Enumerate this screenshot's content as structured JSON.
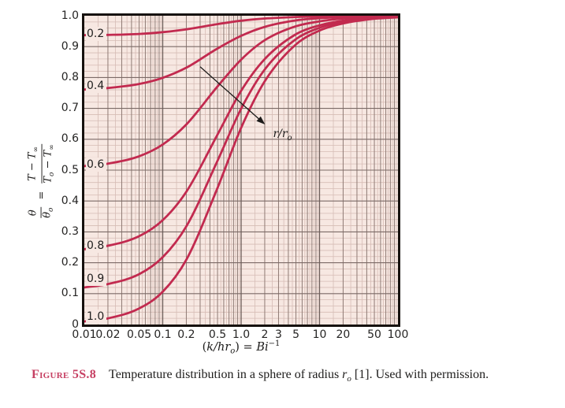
{
  "colors": {
    "plot_bg": "#f7e8e2",
    "frame_color": "#16110e",
    "curve_color": "#c22a4f",
    "grid_major": "#7b6a66",
    "grid_decade": "#6b5c58",
    "grid_mid": "#8f7b75",
    "grid_minor": "#d6bcb5",
    "fig_label_color": "#c63f62",
    "arrow_color": "#1c1b1a"
  },
  "chart_data": {
    "type": "line",
    "x_scale": "log",
    "xlim": [
      0.01,
      100
    ],
    "ylim": [
      0,
      1
    ],
    "grid": "on",
    "x": [
      0.01,
      0.02,
      0.05,
      0.1,
      0.2,
      0.5,
      1,
      2,
      5,
      10,
      20,
      50,
      100
    ],
    "series": [
      {
        "name": "0.2",
        "label_y": 0.942,
        "values": [
          0.937,
          0.938,
          0.941,
          0.947,
          0.956,
          0.973,
          0.984,
          0.991,
          0.996,
          0.998,
          0.999,
          1.0,
          1.0
        ]
      },
      {
        "name": "0.4",
        "label_y": 0.772,
        "values": [
          0.761,
          0.766,
          0.779,
          0.799,
          0.832,
          0.894,
          0.935,
          0.964,
          0.985,
          0.992,
          0.996,
          0.998,
          0.999
        ]
      },
      {
        "name": "0.6",
        "label_y": 0.517,
        "values": [
          0.513,
          0.521,
          0.545,
          0.583,
          0.648,
          0.771,
          0.858,
          0.921,
          0.966,
          0.982,
          0.991,
          0.996,
          0.998
        ]
      },
      {
        "name": "0.8",
        "label_y": 0.254,
        "values": [
          0.244,
          0.255,
          0.286,
          0.338,
          0.43,
          0.615,
          0.757,
          0.86,
          0.94,
          0.969,
          0.984,
          0.994,
          0.997
        ]
      },
      {
        "name": "0.9",
        "label_y": 0.148,
        "values": [
          0.12,
          0.131,
          0.163,
          0.218,
          0.318,
          0.53,
          0.699,
          0.826,
          0.924,
          0.961,
          0.98,
          0.992,
          0.996
        ]
      },
      {
        "name": "1.0",
        "label_y": 0.026,
        "values": [
          0.01,
          0.02,
          0.052,
          0.106,
          0.21,
          0.442,
          0.637,
          0.788,
          0.907,
          0.952,
          0.975,
          0.99,
          0.995
        ]
      }
    ],
    "x_ticks": [
      {
        "v": 0.01,
        "label": "0.01"
      },
      {
        "v": 0.02,
        "label": "0.02"
      },
      {
        "v": 0.05,
        "label": "0.05"
      },
      {
        "v": 0.1,
        "label": "0.1"
      },
      {
        "v": 0.2,
        "label": "0.2"
      },
      {
        "v": 0.5,
        "label": "0.5"
      },
      {
        "v": 1,
        "label": "1.0"
      },
      {
        "v": 2,
        "label": "2"
      },
      {
        "v": 3,
        "label": "3"
      },
      {
        "v": 5,
        "label": "5"
      },
      {
        "v": 10,
        "label": "10"
      },
      {
        "v": 20,
        "label": "20"
      },
      {
        "v": 50,
        "label": "50"
      },
      {
        "v": 100,
        "label": "100"
      }
    ],
    "y_ticks": [
      {
        "v": 1,
        "label": "1.0"
      },
      {
        "v": 0.9,
        "label": "0.9"
      },
      {
        "v": 0.8,
        "label": "0.8"
      },
      {
        "v": 0.7,
        "label": "0.7"
      },
      {
        "v": 0.6,
        "label": "0.6"
      },
      {
        "v": 0.5,
        "label": "0.5"
      },
      {
        "v": 0.4,
        "label": "0.4"
      },
      {
        "v": 0.3,
        "label": "0.3"
      },
      {
        "v": 0.2,
        "label": "0.2"
      },
      {
        "v": 0.1,
        "label": "0.1"
      },
      {
        "v": 0,
        "label": "0"
      }
    ],
    "xlabel_parts": {
      "open": "(",
      "vars": "k/hr",
      "sub": "o",
      "close": ") = ",
      "bi": "Bi",
      "sup": "−1"
    },
    "ylabel_parts": {
      "lhs_num": "θ",
      "lhs_den": "θ",
      "lhs_den_sub": "o",
      "eq": "=",
      "rhs_num_a": "T − T",
      "rhs_num_sub": "∞",
      "rhs_den_a": "T",
      "rhs_den_sub": "o",
      "rhs_den_b": " − T",
      "rhs_den_sub2": "∞"
    },
    "annotation": {
      "arrow": {
        "x1": 0.3,
        "y1": 0.835,
        "x2": 2.02,
        "y2": 0.648
      },
      "label_a": "r/r",
      "label_sub": "o",
      "label_pos": {
        "x": 2.55,
        "y": 0.617
      }
    }
  },
  "caption": {
    "figure_label": "Figure 5S.8",
    "text_pre": "Temperature distribution in a sphere of radius ",
    "var": "r",
    "var_sub": "o",
    "text_post": " [1]. Used with permission."
  }
}
